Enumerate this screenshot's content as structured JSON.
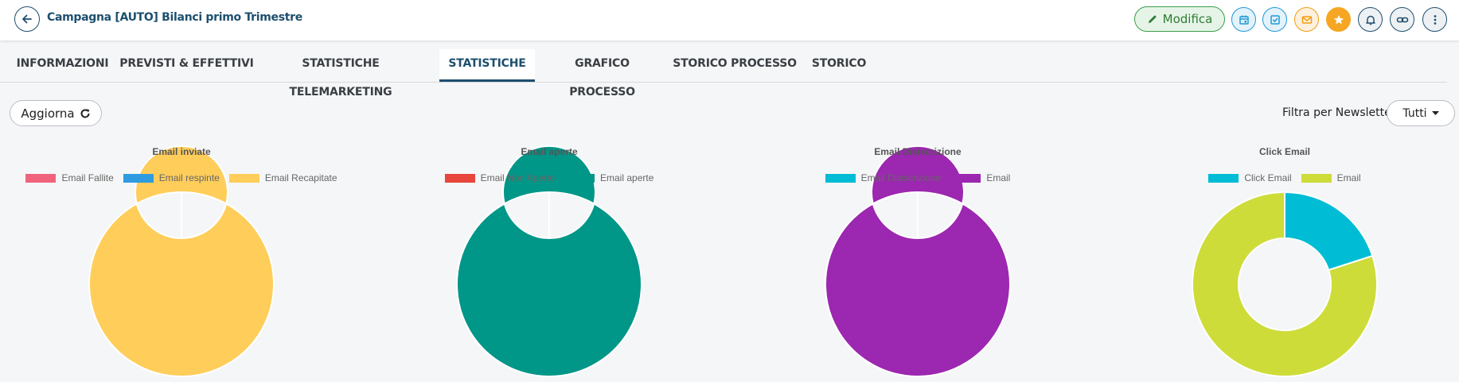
{
  "header": {
    "title": "Campagna [AUTO] Bilanci primo Trimestre",
    "modifica_label": "Modifica",
    "icons": [
      {
        "name": "calendar-icon",
        "color": "#1e9ad6",
        "bg": "#e3f2fb"
      },
      {
        "name": "task-check-icon",
        "color": "#1e9ad6",
        "bg": "#e3f2fb"
      },
      {
        "name": "mail-icon",
        "color": "#f39c12",
        "bg": "#fdf1de"
      },
      {
        "name": "star-icon",
        "color": "#ffffff",
        "bg": "#f5a623"
      },
      {
        "name": "bell-icon",
        "color": "#1d4f6e",
        "bg": "#eef1f4"
      },
      {
        "name": "link-icon",
        "color": "#1d4f6e",
        "bg": "#eef1f4"
      },
      {
        "name": "more-vertical-icon",
        "color": "#1d4f6e",
        "bg": "#eef1f4"
      }
    ]
  },
  "tabs": [
    {
      "label": "INFORMAZIONI",
      "active": false
    },
    {
      "label": "PREVISTI & EFFETTIVI",
      "active": false
    },
    {
      "label": "STATISTICHE TELEMARKETING",
      "active": false
    },
    {
      "label": "STATISTICHE",
      "active": true
    },
    {
      "label": "GRAFICO PROCESSO",
      "active": false
    },
    {
      "label": "STORICO PROCESSO",
      "active": false
    },
    {
      "label": "STORICO",
      "active": false
    }
  ],
  "toolbar": {
    "aggiorna_label": "Aggiorna",
    "filter_label": "Filtra per Newsletter:",
    "filter_value": "Tutti"
  },
  "chart_data": [
    {
      "type": "pie",
      "title": "Email inviate",
      "categories": [
        "Email Fallite",
        "Email respinte",
        "Email Recapitate"
      ],
      "values": [
        0,
        0,
        100
      ],
      "colors": [
        "#f0637c",
        "#2f9be0",
        "#ffcd5a"
      ]
    },
    {
      "type": "pie",
      "title": "Email aperte",
      "categories": [
        "Email Non Aperte",
        "Email aperte"
      ],
      "values": [
        0,
        100
      ],
      "colors": [
        "#e8453c",
        "#009688"
      ]
    },
    {
      "type": "pie",
      "title": "Email Disiscrizione",
      "categories": [
        "Email Disiscrizione",
        "Email"
      ],
      "values": [
        0,
        100
      ],
      "colors": [
        "#00bcd4",
        "#9c27b0"
      ]
    },
    {
      "type": "pie",
      "title": "Click Email",
      "categories": [
        "Click Email",
        "Email"
      ],
      "values": [
        20,
        80
      ],
      "colors": [
        "#00bcd4",
        "#cddc39"
      ]
    }
  ]
}
